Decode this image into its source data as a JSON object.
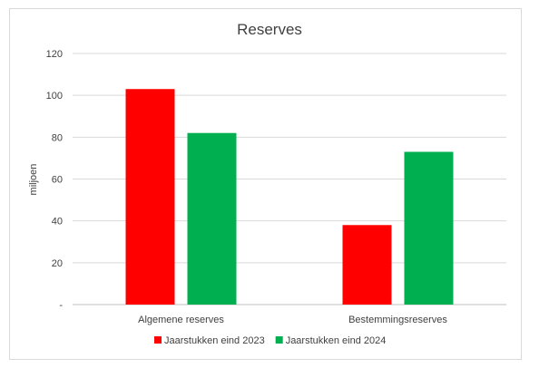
{
  "chart_data": {
    "type": "bar",
    "title": "Reserves",
    "ylabel": "miljoen",
    "xlabel": "",
    "categories": [
      "Algemene reserves",
      "Bestemmingsreserves"
    ],
    "series": [
      {
        "name": "Jaarstukken eind 2023",
        "color": "#ff0000",
        "values": [
          103,
          38
        ]
      },
      {
        "name": "Jaarstukken eind 2024",
        "color": "#00b050",
        "values": [
          82,
          73
        ]
      }
    ],
    "ylim": [
      0,
      120
    ],
    "yticks": [
      {
        "value": 0,
        "label": "-"
      },
      {
        "value": 20,
        "label": "20"
      },
      {
        "value": 40,
        "label": "40"
      },
      {
        "value": 60,
        "label": "60"
      },
      {
        "value": 80,
        "label": "80"
      },
      {
        "value": 100,
        "label": "100"
      },
      {
        "value": 120,
        "label": "120"
      }
    ],
    "grid": true,
    "legend_position": "bottom"
  }
}
